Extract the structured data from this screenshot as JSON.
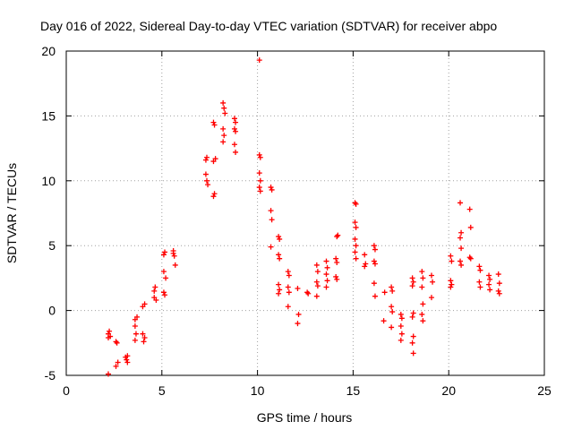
{
  "chart_data": {
    "type": "scatter",
    "title": "Day 016 of 2022, Sidereal Day-to-day VTEC variation (SDTVAR) for receiver abpo",
    "xlabel": "GPS time / hours",
    "ylabel": "SDTVAR / TECUs",
    "xlim": [
      0,
      25
    ],
    "ylim": [
      -5,
      20
    ],
    "x_ticks": [
      "0",
      "5",
      "10",
      "15",
      "20",
      "25"
    ],
    "y_ticks": [
      "-5",
      "0",
      "5",
      "10",
      "15",
      "20"
    ],
    "grid": true,
    "marker": "plus",
    "color": "#ff0000",
    "series": [
      {
        "name": "SDTVAR",
        "points": [
          [
            2.2,
            -1.8
          ],
          [
            2.2,
            -2.1
          ],
          [
            2.25,
            -1.6
          ],
          [
            2.3,
            -2.0
          ],
          [
            2.2,
            -4.9
          ],
          [
            2.6,
            -2.4
          ],
          [
            2.65,
            -2.5
          ],
          [
            2.7,
            -4.0
          ],
          [
            2.6,
            -4.3
          ],
          [
            3.1,
            -3.6
          ],
          [
            3.2,
            -4.0
          ],
          [
            3.15,
            -3.8
          ],
          [
            3.2,
            -3.5
          ],
          [
            3.6,
            -0.7
          ],
          [
            3.6,
            -1.2
          ],
          [
            3.65,
            -1.8
          ],
          [
            3.6,
            -2.3
          ],
          [
            3.7,
            -0.5
          ],
          [
            4.0,
            -1.8
          ],
          [
            4.05,
            -2.4
          ],
          [
            4.1,
            -2.1
          ],
          [
            4.0,
            0.3
          ],
          [
            4.1,
            0.5
          ],
          [
            4.6,
            1.5
          ],
          [
            4.65,
            1.8
          ],
          [
            4.6,
            1.0
          ],
          [
            4.7,
            0.8
          ],
          [
            5.1,
            4.3
          ],
          [
            5.15,
            4.5
          ],
          [
            5.1,
            3.0
          ],
          [
            5.2,
            2.5
          ],
          [
            5.1,
            1.4
          ],
          [
            5.15,
            1.2
          ],
          [
            5.6,
            4.4
          ],
          [
            5.65,
            4.2
          ],
          [
            5.7,
            3.5
          ],
          [
            5.6,
            4.6
          ],
          [
            7.3,
            11.6
          ],
          [
            7.35,
            11.8
          ],
          [
            7.3,
            10.5
          ],
          [
            7.35,
            10.0
          ],
          [
            7.4,
            9.7
          ],
          [
            7.7,
            14.5
          ],
          [
            7.75,
            14.3
          ],
          [
            7.8,
            11.7
          ],
          [
            7.7,
            11.5
          ],
          [
            7.75,
            9.0
          ],
          [
            7.7,
            8.8
          ],
          [
            8.2,
            16.0
          ],
          [
            8.25,
            15.6
          ],
          [
            8.3,
            15.2
          ],
          [
            8.2,
            14.0
          ],
          [
            8.25,
            13.5
          ],
          [
            8.2,
            13.0
          ],
          [
            8.8,
            14.8
          ],
          [
            8.85,
            14.5
          ],
          [
            8.8,
            14.0
          ],
          [
            8.85,
            13.8
          ],
          [
            8.8,
            12.8
          ],
          [
            8.85,
            12.2
          ],
          [
            10.1,
            19.3
          ],
          [
            10.1,
            12.0
          ],
          [
            10.15,
            11.8
          ],
          [
            10.1,
            10.6
          ],
          [
            10.15,
            10.0
          ],
          [
            10.1,
            9.5
          ],
          [
            10.15,
            9.2
          ],
          [
            10.7,
            9.5
          ],
          [
            10.75,
            9.3
          ],
          [
            10.7,
            7.7
          ],
          [
            10.75,
            7.0
          ],
          [
            10.7,
            4.9
          ],
          [
            11.1,
            5.7
          ],
          [
            11.15,
            5.5
          ],
          [
            11.1,
            4.3
          ],
          [
            11.15,
            4.0
          ],
          [
            11.1,
            2.0
          ],
          [
            11.15,
            1.6
          ],
          [
            11.1,
            1.3
          ],
          [
            11.6,
            3.0
          ],
          [
            11.65,
            2.7
          ],
          [
            11.6,
            1.8
          ],
          [
            11.65,
            1.4
          ],
          [
            11.6,
            0.3
          ],
          [
            12.1,
            1.7
          ],
          [
            12.15,
            -0.3
          ],
          [
            12.1,
            -1.0
          ],
          [
            12.6,
            1.4
          ],
          [
            12.65,
            1.3
          ],
          [
            13.1,
            3.5
          ],
          [
            13.15,
            3.0
          ],
          [
            13.1,
            2.2
          ],
          [
            13.15,
            1.9
          ],
          [
            13.1,
            1.1
          ],
          [
            13.6,
            3.8
          ],
          [
            13.65,
            3.3
          ],
          [
            13.6,
            2.8
          ],
          [
            13.65,
            2.3
          ],
          [
            13.6,
            1.8
          ],
          [
            14.1,
            4.0
          ],
          [
            14.15,
            3.7
          ],
          [
            14.1,
            2.6
          ],
          [
            14.15,
            2.4
          ],
          [
            14.2,
            5.8
          ],
          [
            14.15,
            5.7
          ],
          [
            15.1,
            8.3
          ],
          [
            15.15,
            8.2
          ],
          [
            15.1,
            6.8
          ],
          [
            15.15,
            6.4
          ],
          [
            15.1,
            5.5
          ],
          [
            15.15,
            5.0
          ],
          [
            15.1,
            4.5
          ],
          [
            15.15,
            4.0
          ],
          [
            15.6,
            4.3
          ],
          [
            15.65,
            3.6
          ],
          [
            15.6,
            3.4
          ],
          [
            16.1,
            5.0
          ],
          [
            16.15,
            4.7
          ],
          [
            16.1,
            3.8
          ],
          [
            16.15,
            3.6
          ],
          [
            16.1,
            2.1
          ],
          [
            16.15,
            1.1
          ],
          [
            16.6,
            -0.8
          ],
          [
            16.65,
            1.4
          ],
          [
            17.0,
            1.8
          ],
          [
            17.05,
            1.5
          ],
          [
            17.0,
            0.3
          ],
          [
            17.05,
            -0.1
          ],
          [
            17.0,
            -1.3
          ],
          [
            17.5,
            -0.3
          ],
          [
            17.55,
            -0.6
          ],
          [
            17.5,
            -1.2
          ],
          [
            17.55,
            -1.8
          ],
          [
            17.5,
            -2.3
          ],
          [
            18.1,
            2.5
          ],
          [
            18.15,
            2.2
          ],
          [
            18.1,
            1.9
          ],
          [
            18.15,
            -0.2
          ],
          [
            18.1,
            -0.5
          ],
          [
            18.15,
            -2.0
          ],
          [
            18.1,
            -2.5
          ],
          [
            18.15,
            -3.3
          ],
          [
            18.6,
            3.0
          ],
          [
            18.65,
            2.5
          ],
          [
            18.6,
            1.8
          ],
          [
            18.65,
            0.5
          ],
          [
            18.6,
            -0.3
          ],
          [
            18.65,
            -0.8
          ],
          [
            19.1,
            2.7
          ],
          [
            19.15,
            2.2
          ],
          [
            19.1,
            1.0
          ],
          [
            20.1,
            4.2
          ],
          [
            20.15,
            3.8
          ],
          [
            20.1,
            2.3
          ],
          [
            20.15,
            2.0
          ],
          [
            20.1,
            1.8
          ],
          [
            20.6,
            8.3
          ],
          [
            20.65,
            6.0
          ],
          [
            20.6,
            5.6
          ],
          [
            20.65,
            4.8
          ],
          [
            20.6,
            3.8
          ],
          [
            20.65,
            3.5
          ],
          [
            21.1,
            7.8
          ],
          [
            21.15,
            6.4
          ],
          [
            21.1,
            4.1
          ],
          [
            21.15,
            4.0
          ],
          [
            21.6,
            3.4
          ],
          [
            21.65,
            3.1
          ],
          [
            21.6,
            2.2
          ],
          [
            21.65,
            1.8
          ],
          [
            22.1,
            2.7
          ],
          [
            22.15,
            2.4
          ],
          [
            22.1,
            2.0
          ],
          [
            22.15,
            1.6
          ],
          [
            22.6,
            2.8
          ],
          [
            22.65,
            2.1
          ],
          [
            22.6,
            1.5
          ],
          [
            22.65,
            1.3
          ]
        ]
      }
    ]
  }
}
